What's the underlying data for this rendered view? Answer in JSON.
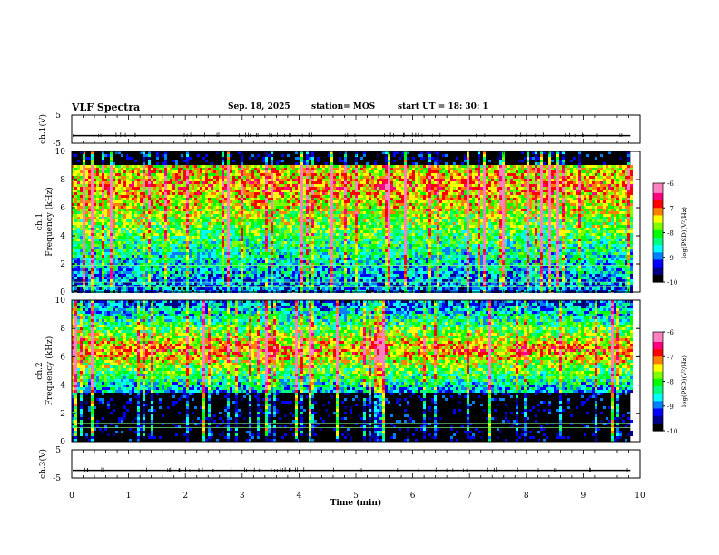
{
  "header": {
    "title": "VLF Spectra",
    "date": "Sep. 18, 2025",
    "station": "station= MOS",
    "start": "start  UT =   18: 30: 1"
  },
  "chart_data": [
    {
      "type": "line",
      "panel": "ch1-voltage",
      "ylabel": "ch.1(V)",
      "ylim": [
        -5,
        5
      ],
      "yticks": [
        "5",
        "-5"
      ],
      "xlim": [
        0,
        10
      ],
      "baseline": -2.3,
      "color": "#000000"
    },
    {
      "type": "heatmap",
      "panel": "ch1-spectrogram",
      "ylabel": "ch.1\nFrequency (kHz)",
      "ylim": [
        0,
        10
      ],
      "yticks": [
        "0",
        "2",
        "4",
        "6",
        "8",
        "10"
      ],
      "xlim": [
        0,
        10
      ],
      "data_end_min": 9.83,
      "band_khz": [
        0,
        9
      ],
      "band_peak_khz": 7.5,
      "horizontal_lines_khz": [
        0.4,
        0.7,
        1.7,
        1.9
      ],
      "colorbar": {
        "label": "log(PSD)(V²/Hz)",
        "range": [
          -10,
          -6
        ],
        "ticks": [
          "-6",
          "-7",
          "-8",
          "-9",
          "-10"
        ]
      }
    },
    {
      "type": "heatmap",
      "panel": "ch2-spectrogram",
      "ylabel": "ch.2\nFrequency (kHz)",
      "ylim": [
        0,
        10
      ],
      "yticks": [
        "0",
        "2",
        "4",
        "6",
        "8",
        "10"
      ],
      "xlim": [
        0,
        10
      ],
      "data_end_min": 9.83,
      "band_khz": [
        3.5,
        10
      ],
      "band_peak_khz": 6.5,
      "horizontal_lines_khz": [
        1.0,
        1.3
      ],
      "colorbar": {
        "label": "log(PSD)(V²/Hz)",
        "range": [
          -10,
          -6
        ],
        "ticks": [
          "-6",
          "-7",
          "-8",
          "-9",
          "-10"
        ]
      }
    },
    {
      "type": "line",
      "panel": "ch3-voltage",
      "ylabel": "ch.3(V)",
      "ylim": [
        -5,
        5
      ],
      "yticks": [
        "5",
        "-5"
      ],
      "xlim": [
        0,
        10
      ],
      "baseline": -2.3,
      "color": "#000000"
    }
  ],
  "xaxis": {
    "label": "Time  (min)",
    "ticks": [
      "0",
      "1",
      "2",
      "3",
      "4",
      "5",
      "6",
      "7",
      "8",
      "9",
      "10"
    ]
  },
  "colormap": [
    "#000000",
    "#00008b",
    "#0000ff",
    "#0080ff",
    "#00ffff",
    "#00ff80",
    "#00ff00",
    "#80ff00",
    "#ffff00",
    "#ff8000",
    "#ff0000",
    "#ff0080",
    "#ff80c0",
    "#ffffff"
  ]
}
